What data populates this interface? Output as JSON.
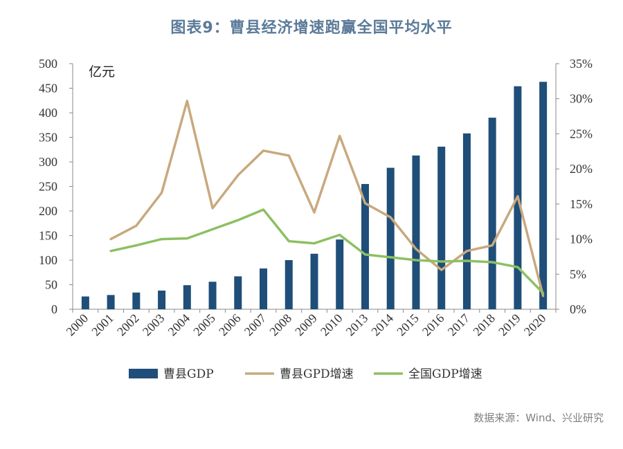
{
  "title": "图表9：曹县经济增速跑赢全国平均水平",
  "source": "数据来源：Wind、兴业研究",
  "chart_data": {
    "type": "bar+line",
    "unit_left": "亿元",
    "categories": [
      "2000",
      "2001",
      "2002",
      "2003",
      "2004",
      "2005",
      "2006",
      "2007",
      "2008",
      "2009",
      "2010",
      "2013",
      "2014",
      "2015",
      "2016",
      "2017",
      "2018",
      "2019",
      "2020"
    ],
    "y_left": {
      "min": 0,
      "max": 500,
      "step": 50,
      "ticks": [
        "0",
        "50",
        "100",
        "150",
        "200",
        "250",
        "300",
        "350",
        "400",
        "450",
        "500"
      ]
    },
    "y_right": {
      "min": 0,
      "max": 35,
      "step": 5,
      "ticks": [
        "0%",
        "5%",
        "10%",
        "15%",
        "20%",
        "25%",
        "30%",
        "35%"
      ]
    },
    "legend_position": "bottom",
    "series": [
      {
        "name": "曹县GDP",
        "type": "bar",
        "axis": "left",
        "color": "#1f4e79",
        "values": [
          26,
          29,
          34,
          38,
          49,
          56,
          67,
          83,
          100,
          113,
          142,
          255,
          288,
          313,
          331,
          358,
          390,
          454,
          463
        ]
      },
      {
        "name": "曹县GPD增速",
        "type": "line",
        "axis": "right",
        "color": "#c8a97e",
        "values": [
          null,
          10.0,
          11.9,
          16.6,
          29.7,
          14.4,
          19.1,
          22.6,
          21.9,
          13.8,
          24.7,
          15.1,
          13.1,
          8.6,
          5.6,
          8.3,
          9.1,
          16.1,
          1.9
        ]
      },
      {
        "name": "全国GDP增速",
        "type": "line",
        "axis": "right",
        "color": "#8cc063",
        "values": [
          null,
          8.3,
          9.1,
          10.0,
          10.1,
          11.4,
          12.7,
          14.2,
          9.7,
          9.4,
          10.6,
          7.8,
          7.4,
          7.0,
          6.8,
          6.9,
          6.7,
          6.0,
          2.3
        ]
      }
    ]
  }
}
